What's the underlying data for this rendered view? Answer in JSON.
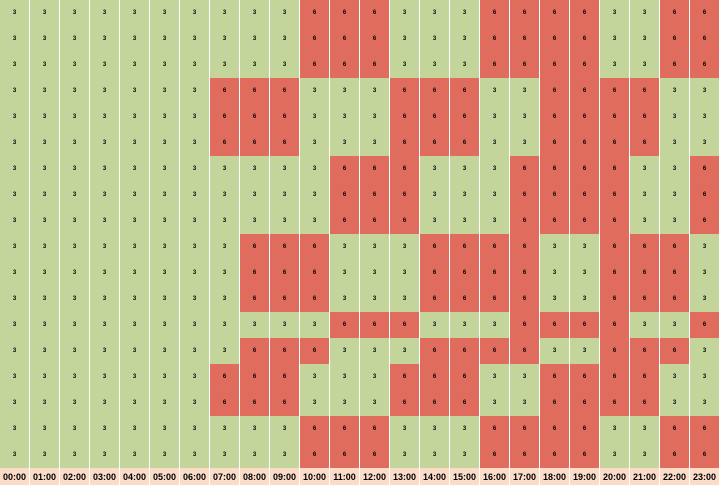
{
  "chart_data": {
    "type": "heatmap",
    "colors": {
      "3": "#c3d59b",
      "6": "#e06c5d"
    },
    "x": [
      "00:00",
      "01:00",
      "02:00",
      "03:00",
      "04:00",
      "05:00",
      "06:00",
      "07:00",
      "08:00",
      "09:00",
      "10:00",
      "11:00",
      "12:00",
      "13:00",
      "14:00",
      "15:00",
      "16:00",
      "17:00",
      "18:00",
      "19:00",
      "20:00",
      "21:00",
      "22:00",
      "23:00"
    ],
    "rows": [
      [
        3,
        3,
        3,
        3,
        3,
        3,
        3,
        3,
        3,
        3,
        6,
        6,
        6,
        3,
        3,
        3,
        6,
        6,
        6,
        6,
        3,
        3,
        6,
        6
      ],
      [
        3,
        3,
        3,
        3,
        3,
        3,
        3,
        3,
        3,
        3,
        6,
        6,
        6,
        3,
        3,
        3,
        6,
        6,
        6,
        6,
        3,
        3,
        6,
        6
      ],
      [
        3,
        3,
        3,
        3,
        3,
        3,
        3,
        3,
        3,
        3,
        6,
        6,
        6,
        3,
        3,
        3,
        6,
        6,
        6,
        6,
        3,
        3,
        6,
        6
      ],
      [
        3,
        3,
        3,
        3,
        3,
        3,
        3,
        6,
        6,
        6,
        3,
        3,
        3,
        6,
        6,
        6,
        3,
        3,
        6,
        6,
        6,
        6,
        3,
        3
      ],
      [
        3,
        3,
        3,
        3,
        3,
        3,
        3,
        6,
        6,
        6,
        3,
        3,
        3,
        6,
        6,
        6,
        3,
        3,
        6,
        6,
        6,
        6,
        3,
        3
      ],
      [
        3,
        3,
        3,
        3,
        3,
        3,
        3,
        6,
        6,
        6,
        3,
        3,
        3,
        6,
        6,
        6,
        3,
        3,
        6,
        6,
        6,
        6,
        3,
        3
      ],
      [
        3,
        3,
        3,
        3,
        3,
        3,
        3,
        3,
        3,
        3,
        3,
        6,
        6,
        6,
        3,
        3,
        3,
        6,
        6,
        6,
        6,
        3,
        3,
        6
      ],
      [
        3,
        3,
        3,
        3,
        3,
        3,
        3,
        3,
        3,
        3,
        3,
        6,
        6,
        6,
        3,
        3,
        3,
        6,
        6,
        6,
        6,
        3,
        3,
        6
      ],
      [
        3,
        3,
        3,
        3,
        3,
        3,
        3,
        3,
        3,
        3,
        3,
        6,
        6,
        6,
        3,
        3,
        3,
        6,
        6,
        6,
        6,
        3,
        3,
        6
      ],
      [
        3,
        3,
        3,
        3,
        3,
        3,
        3,
        3,
        6,
        6,
        6,
        3,
        3,
        3,
        6,
        6,
        6,
        6,
        3,
        3,
        6,
        6,
        6,
        3
      ],
      [
        3,
        3,
        3,
        3,
        3,
        3,
        3,
        3,
        6,
        6,
        6,
        3,
        3,
        3,
        6,
        6,
        6,
        6,
        3,
        3,
        6,
        6,
        6,
        3
      ],
      [
        3,
        3,
        3,
        3,
        3,
        3,
        3,
        3,
        6,
        6,
        6,
        3,
        3,
        3,
        6,
        6,
        6,
        6,
        3,
        3,
        6,
        6,
        6,
        3
      ],
      [
        3,
        3,
        3,
        3,
        3,
        3,
        3,
        3,
        3,
        3,
        3,
        6,
        6,
        6,
        3,
        3,
        3,
        6,
        6,
        6,
        6,
        3,
        3,
        6
      ],
      [
        3,
        3,
        3,
        3,
        3,
        3,
        3,
        3,
        6,
        6,
        6,
        3,
        3,
        3,
        6,
        6,
        6,
        6,
        3,
        3,
        6,
        6,
        6,
        3
      ],
      [
        3,
        3,
        3,
        3,
        3,
        3,
        3,
        6,
        6,
        6,
        3,
        3,
        3,
        6,
        6,
        6,
        3,
        3,
        6,
        6,
        6,
        6,
        3,
        3
      ],
      [
        3,
        3,
        3,
        3,
        3,
        3,
        3,
        6,
        6,
        6,
        3,
        3,
        3,
        6,
        6,
        6,
        3,
        3,
        6,
        6,
        6,
        6,
        3,
        3
      ],
      [
        3,
        3,
        3,
        3,
        3,
        3,
        3,
        3,
        3,
        3,
        6,
        6,
        6,
        3,
        3,
        3,
        6,
        6,
        6,
        6,
        3,
        3,
        6,
        6
      ],
      [
        3,
        3,
        3,
        3,
        3,
        3,
        3,
        3,
        3,
        3,
        6,
        6,
        6,
        3,
        3,
        3,
        6,
        6,
        6,
        6,
        3,
        3,
        6,
        6
      ]
    ]
  }
}
